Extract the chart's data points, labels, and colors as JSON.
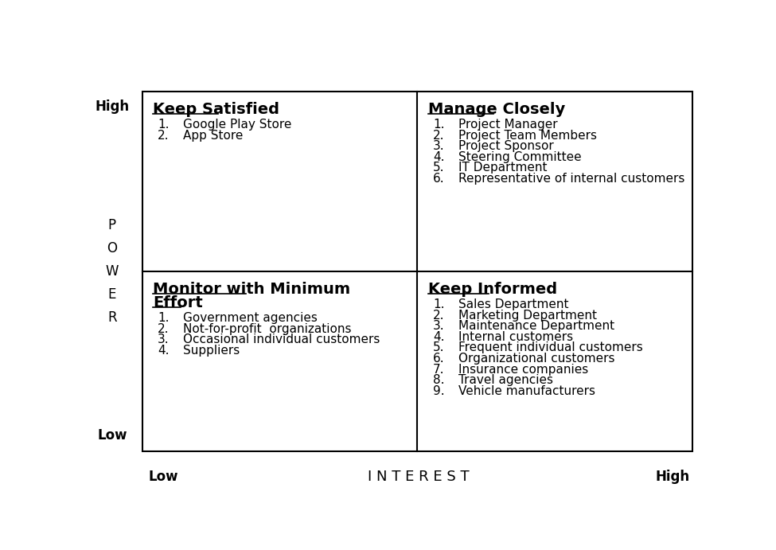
{
  "title_interest": "I N T E R E S T",
  "title_power": "P\nO\nW\nE\nR",
  "label_high_power": "High",
  "label_low_power": "Low",
  "label_low_interest": "Low",
  "label_high_interest": "High",
  "quadrants": {
    "top_left": {
      "title": "Keep Satisfied",
      "items": [
        "Google Play Store",
        "App Store"
      ]
    },
    "top_right": {
      "title": "Manage Closely",
      "items": [
        "Project Manager",
        "Project Team Members",
        "Project Sponsor",
        "Steering Committee",
        "IT Department",
        "Representative of internal customers"
      ]
    },
    "bottom_left": {
      "title_lines": [
        "Monitor with Minimum",
        "Effort"
      ],
      "items": [
        "Government agencies",
        "Not-for-profit  organizations",
        "Occasional individual customers",
        "Suppliers"
      ]
    },
    "bottom_right": {
      "title": "Keep Informed",
      "items": [
        "Sales Department",
        "Marketing Department",
        "Maintenance Department",
        "Internal customers",
        "Frequent individual customers",
        "Organizational customers",
        "Insurance companies",
        "Travel agencies",
        "Vehicle manufacturers"
      ]
    }
  },
  "bg_color": "#ffffff",
  "text_color": "#000000",
  "border_color": "#000000",
  "title_fontsize": 14,
  "item_fontsize": 11,
  "axis_label_fontsize": 12,
  "power_label_fontsize": 12
}
